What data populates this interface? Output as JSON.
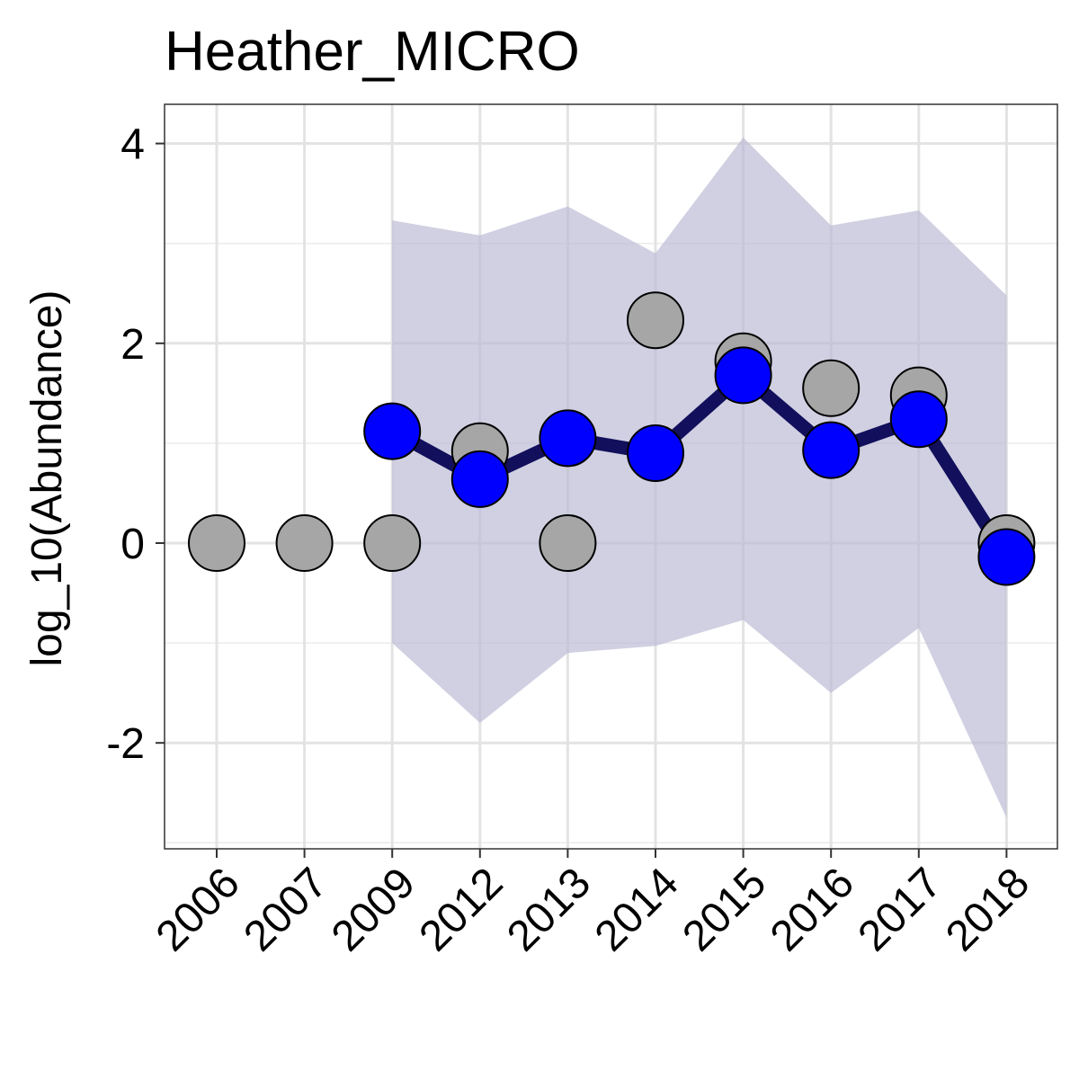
{
  "chart_data": {
    "type": "line",
    "title": "Heather_MICRO",
    "xlabel": "",
    "ylabel": "log_10(Abundance)",
    "categories": [
      "2006",
      "2007",
      "2009",
      "2012",
      "2013",
      "2014",
      "2015",
      "2016",
      "2017",
      "2018"
    ],
    "ylim": [
      -3.03,
      4.4
    ],
    "y_ticks": [
      -2,
      0,
      2,
      4
    ],
    "y_tick_labels": [
      "-2",
      "0",
      "2",
      "4"
    ],
    "grid": true,
    "legend": "none",
    "series": [
      {
        "kind": "points",
        "color": "#a6a6a6",
        "values": [
          0,
          0,
          0,
          0.92,
          0,
          2.23,
          1.82,
          1.55,
          1.48,
          0
        ]
      },
      {
        "kind": "line-points",
        "color": "#0000ff",
        "line_color": "#120f5c",
        "values": [
          null,
          null,
          1.12,
          0.64,
          1.05,
          0.9,
          1.68,
          0.93,
          1.24,
          -0.14
        ]
      }
    ],
    "ribbon": {
      "color": "#b9b9d4",
      "lower": [
        null,
        null,
        -1.0,
        -1.8,
        -1.1,
        -1.03,
        -0.77,
        -1.5,
        -0.85,
        -2.75
      ],
      "upper": [
        null,
        null,
        3.23,
        3.08,
        3.37,
        2.9,
        4.06,
        3.18,
        3.33,
        2.48
      ]
    }
  }
}
